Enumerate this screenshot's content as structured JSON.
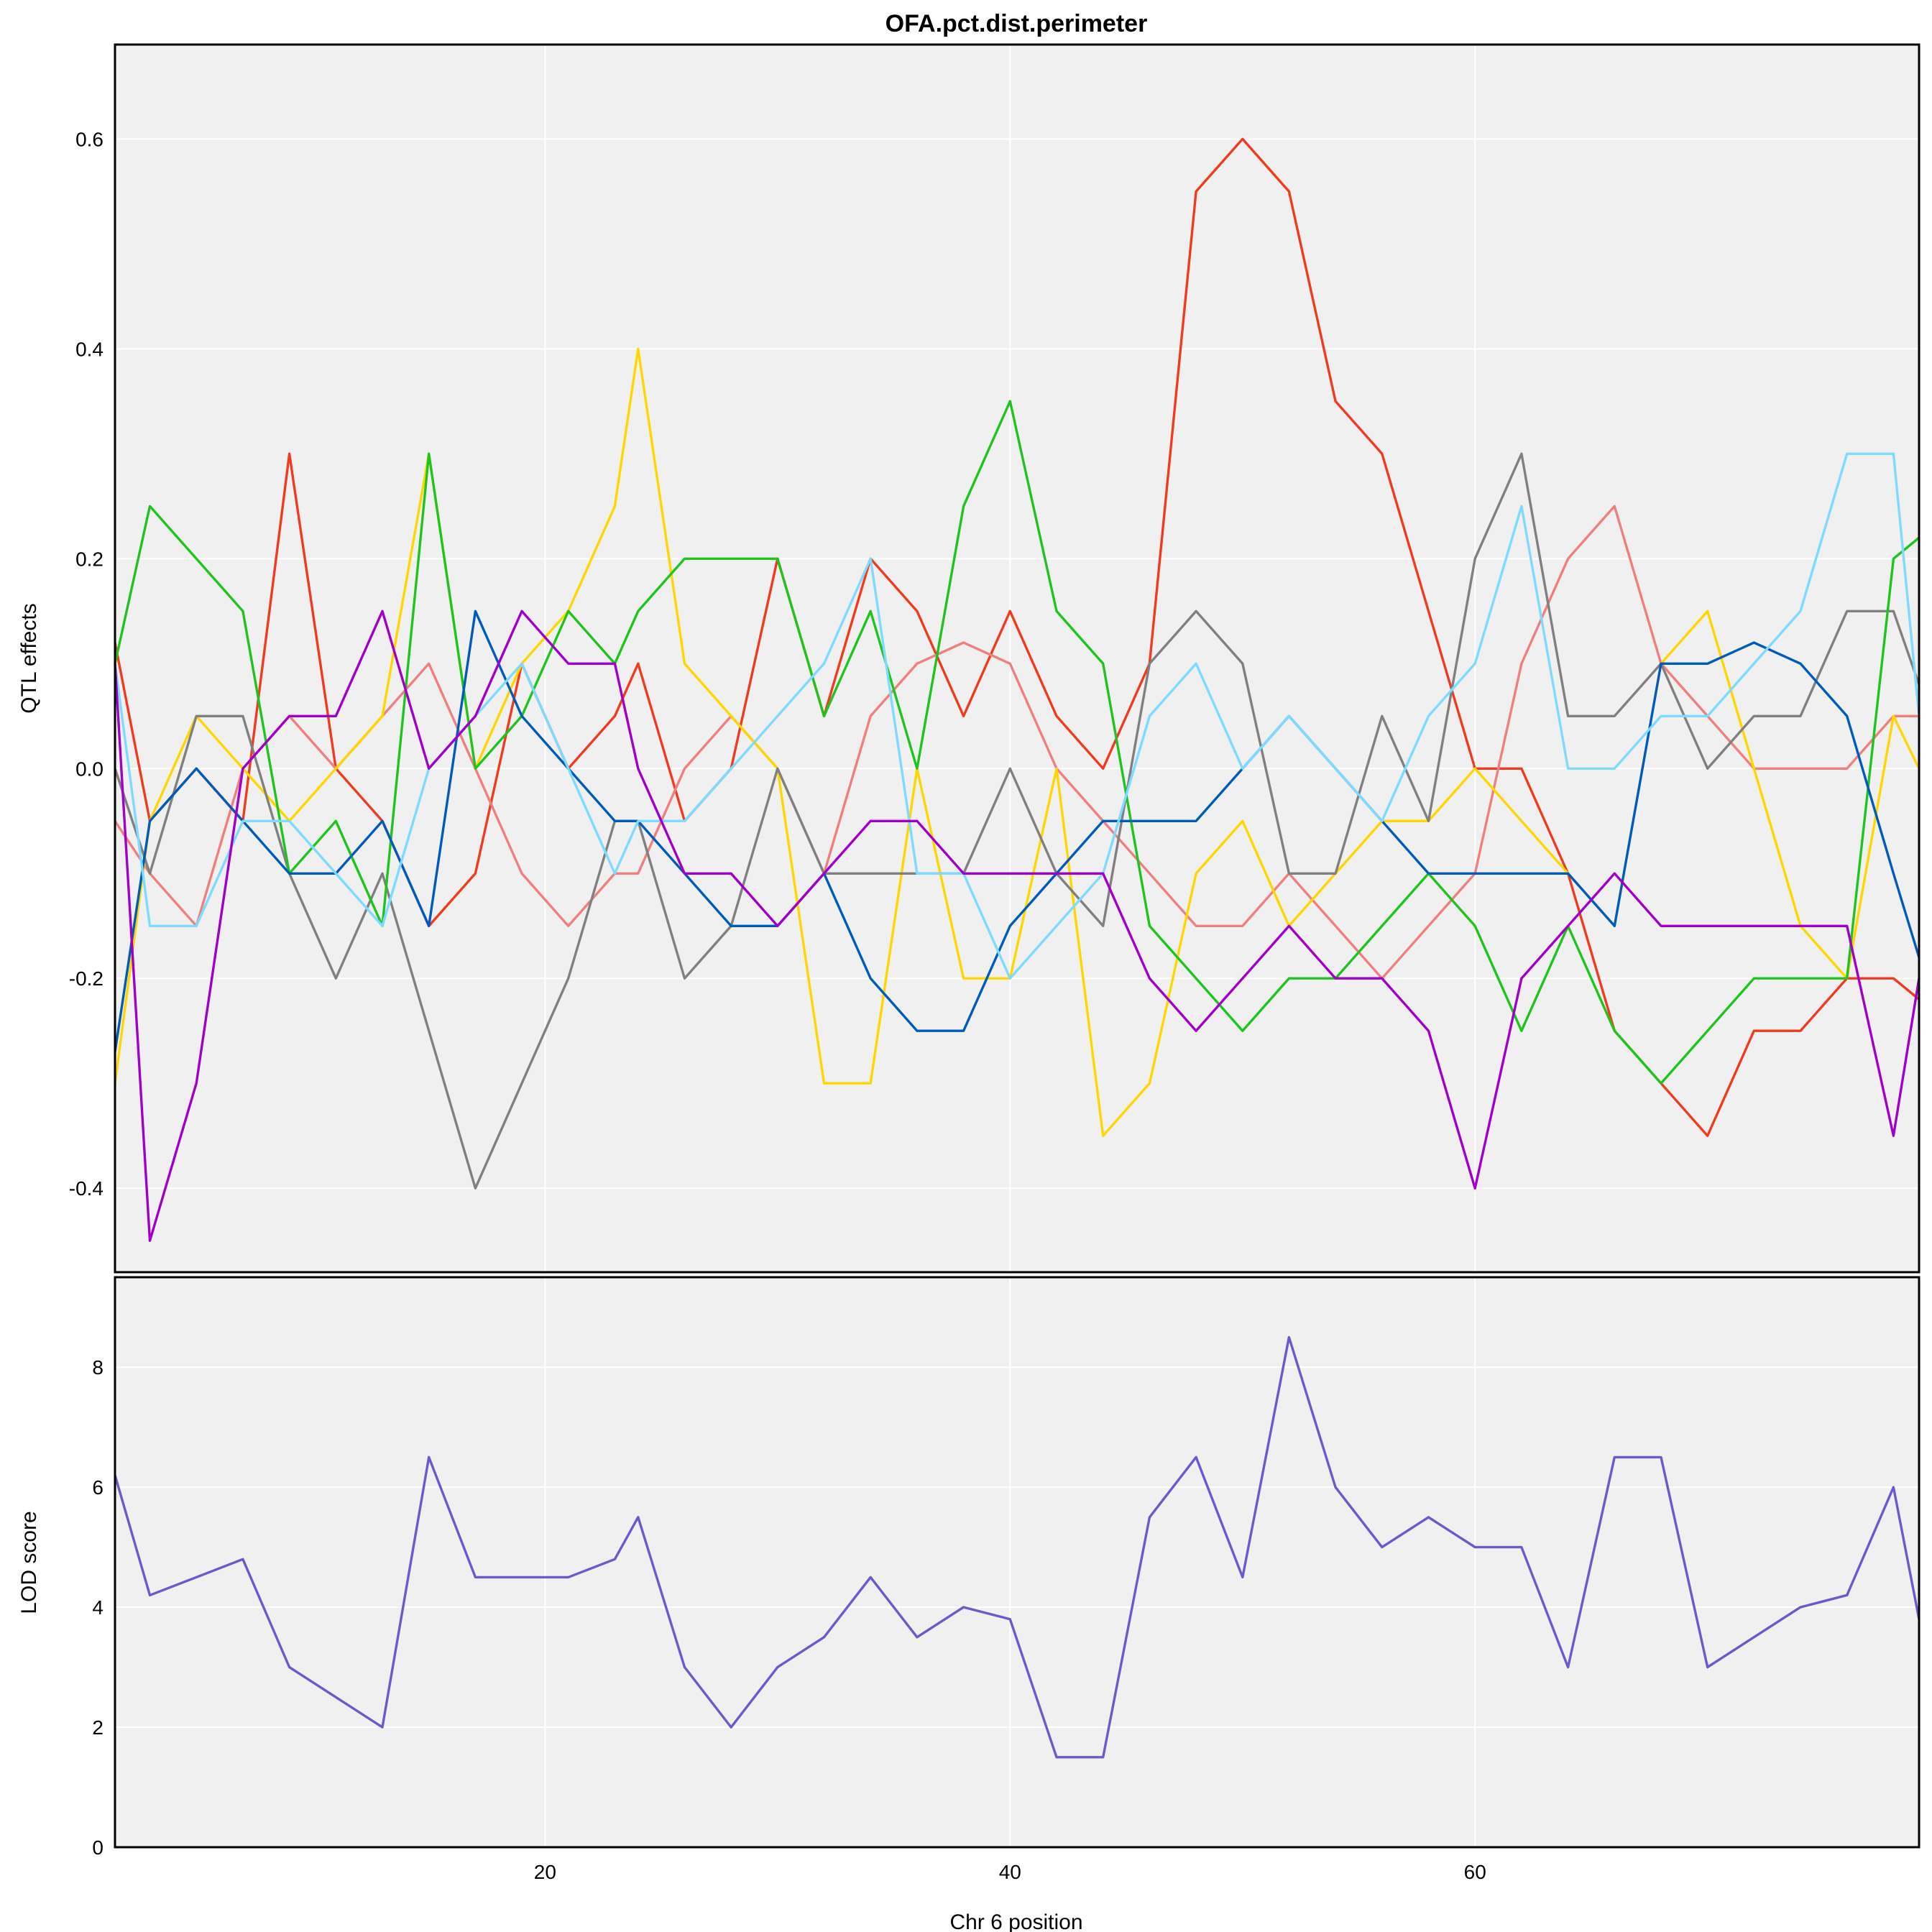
{
  "chart_data": {
    "type": "line",
    "title": "OFA.pct.dist.perimeter",
    "xlabel": "Chr 6 position",
    "xlim": [
      1.5,
      79.1
    ],
    "x_ticks": [
      20,
      40,
      60
    ],
    "x": [
      1.5,
      3,
      5,
      7,
      9,
      11,
      13,
      15,
      17,
      19,
      21,
      23,
      24,
      26,
      28,
      30,
      32,
      34,
      36,
      38,
      40,
      42,
      44,
      46,
      48,
      50,
      52,
      54,
      56,
      58,
      60,
      62,
      64,
      66,
      68,
      70,
      72,
      74,
      76,
      78,
      79.1
    ],
    "grid": true,
    "panels": [
      {
        "name": "effects",
        "ylabel": "QTL effects",
        "ylim": [
          -0.48,
          0.69
        ],
        "y_ticks": [
          -0.4,
          -0.2,
          0.0,
          0.2,
          0.4,
          0.6
        ],
        "series": [
          {
            "color": "#f03b20",
            "values": [
              0.12,
              -0.05,
              0.0,
              -0.05,
              0.3,
              0.0,
              -0.05,
              -0.15,
              -0.1,
              0.1,
              0.0,
              0.05,
              0.1,
              -0.05,
              0.0,
              0.2,
              0.05,
              0.2,
              0.15,
              0.05,
              0.15,
              0.05,
              0.0,
              0.1,
              0.55,
              0.6,
              0.55,
              0.35,
              0.3,
              0.15,
              0.0,
              0.0,
              -0.1,
              -0.25,
              -0.3,
              -0.35,
              -0.25,
              -0.25,
              -0.2,
              -0.2,
              -0.22
            ]
          },
          {
            "color": "#f08080",
            "values": [
              -0.05,
              -0.1,
              -0.15,
              0.0,
              0.05,
              0.0,
              0.05,
              0.1,
              0.0,
              -0.1,
              -0.15,
              -0.1,
              -0.1,
              0.0,
              0.05,
              0.0,
              -0.1,
              0.05,
              0.1,
              0.12,
              0.1,
              0.0,
              -0.05,
              -0.1,
              -0.15,
              -0.15,
              -0.1,
              -0.15,
              -0.2,
              -0.15,
              -0.1,
              0.1,
              0.2,
              0.25,
              0.1,
              0.05,
              0.0,
              0.0,
              0.0,
              0.05,
              0.05
            ]
          },
          {
            "color": "#ffd700",
            "values": [
              -0.3,
              -0.05,
              0.05,
              0.0,
              -0.05,
              0.0,
              0.05,
              0.3,
              0.0,
              0.1,
              0.15,
              0.25,
              0.4,
              0.1,
              0.05,
              0.0,
              -0.3,
              -0.3,
              0.0,
              -0.2,
              -0.2,
              0.0,
              -0.35,
              -0.3,
              -0.1,
              -0.05,
              -0.15,
              -0.1,
              -0.05,
              -0.05,
              0.0,
              -0.05,
              -0.1,
              -0.15,
              0.1,
              0.15,
              0.0,
              -0.15,
              -0.2,
              0.05,
              0.0
            ]
          },
          {
            "color": "#808080",
            "values": [
              0.0,
              -0.1,
              0.05,
              0.05,
              -0.1,
              -0.2,
              -0.1,
              -0.25,
              -0.4,
              -0.3,
              -0.2,
              -0.05,
              -0.05,
              -0.2,
              -0.15,
              0.0,
              -0.1,
              -0.1,
              -0.1,
              -0.1,
              0.0,
              -0.1,
              -0.15,
              0.1,
              0.15,
              0.1,
              -0.1,
              -0.1,
              0.05,
              -0.05,
              0.2,
              0.3,
              0.05,
              0.05,
              0.1,
              0.0,
              0.05,
              0.05,
              0.15,
              0.15,
              0.08
            ]
          },
          {
            "color": "#1fc41f",
            "values": [
              0.1,
              0.25,
              0.2,
              0.15,
              -0.1,
              -0.05,
              -0.15,
              0.3,
              0.0,
              0.05,
              0.15,
              0.1,
              0.15,
              0.2,
              0.2,
              0.2,
              0.05,
              0.15,
              0.0,
              0.25,
              0.35,
              0.15,
              0.1,
              -0.15,
              -0.2,
              -0.25,
              -0.2,
              -0.2,
              -0.15,
              -0.1,
              -0.15,
              -0.25,
              -0.15,
              -0.25,
              -0.3,
              -0.25,
              -0.2,
              -0.2,
              -0.2,
              0.2,
              0.22
            ]
          },
          {
            "color": "#005bbb",
            "values": [
              -0.27,
              -0.05,
              0.0,
              -0.05,
              -0.1,
              -0.1,
              -0.05,
              -0.15,
              0.15,
              0.05,
              0.0,
              -0.05,
              -0.05,
              -0.1,
              -0.15,
              -0.15,
              -0.1,
              -0.2,
              -0.25,
              -0.25,
              -0.15,
              -0.1,
              -0.05,
              -0.05,
              -0.05,
              0.0,
              0.05,
              0.0,
              -0.05,
              -0.1,
              -0.1,
              -0.1,
              -0.1,
              -0.15,
              0.1,
              0.1,
              0.12,
              0.1,
              0.05,
              -0.1,
              -0.18
            ]
          },
          {
            "color": "#7fdaff",
            "values": [
              0.1,
              -0.15,
              -0.15,
              -0.05,
              -0.05,
              -0.1,
              -0.15,
              0.0,
              0.05,
              0.1,
              0.0,
              -0.1,
              -0.05,
              -0.05,
              0.0,
              0.05,
              0.1,
              0.2,
              -0.1,
              -0.1,
              -0.2,
              -0.15,
              -0.1,
              0.05,
              0.1,
              0.0,
              0.05,
              0.0,
              -0.05,
              0.05,
              0.1,
              0.25,
              0.0,
              0.0,
              0.05,
              0.05,
              0.1,
              0.15,
              0.3,
              0.3,
              0.05
            ]
          },
          {
            "color": "#a000c8",
            "values": [
              0.1,
              -0.45,
              -0.3,
              0.0,
              0.05,
              0.05,
              0.15,
              0.0,
              0.05,
              0.15,
              0.1,
              0.1,
              0.0,
              -0.1,
              -0.1,
              -0.15,
              -0.1,
              -0.05,
              -0.05,
              -0.1,
              -0.1,
              -0.1,
              -0.1,
              -0.2,
              -0.25,
              -0.2,
              -0.15,
              -0.2,
              -0.2,
              -0.25,
              -0.4,
              -0.2,
              -0.15,
              -0.1,
              -0.15,
              -0.15,
              -0.15,
              -0.15,
              -0.15,
              -0.35,
              -0.2
            ]
          }
        ]
      },
      {
        "name": "lod",
        "ylabel": "LOD score",
        "ylim": [
          0,
          9.5
        ],
        "y_ticks": [
          0,
          2,
          4,
          6,
          8
        ],
        "series": [
          {
            "color": "#6a5acd",
            "values": [
              6.2,
              4.2,
              4.5,
              4.8,
              3.0,
              2.5,
              2.0,
              6.5,
              4.5,
              4.5,
              4.5,
              4.8,
              5.5,
              3.0,
              2.0,
              3.0,
              3.5,
              4.5,
              3.5,
              4.0,
              3.8,
              1.5,
              1.5,
              5.5,
              6.5,
              4.5,
              8.5,
              6.0,
              5.0,
              5.5,
              5.0,
              5.0,
              3.0,
              6.5,
              6.5,
              3.0,
              3.5,
              4.0,
              4.2,
              6.0,
              3.8
            ]
          }
        ]
      }
    ]
  }
}
